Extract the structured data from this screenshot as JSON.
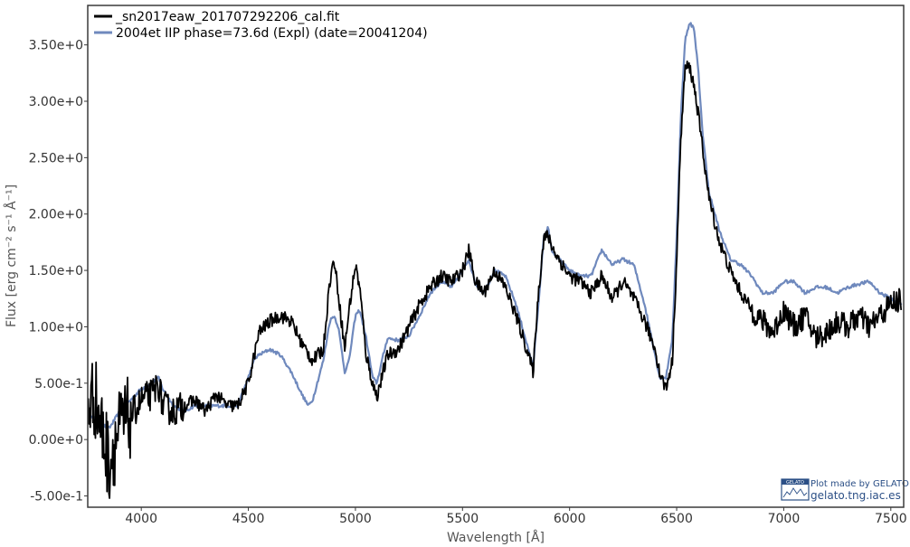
{
  "chart_data": {
    "type": "line",
    "title": "",
    "xlabel": "Wavelength [Å]",
    "ylabel": "Flux [erg cm⁻² s⁻¹ Å⁻¹]",
    "xlim": [
      3750,
      7560
    ],
    "ylim": [
      -0.6,
      3.85
    ],
    "x_ticks": [
      4000,
      4500,
      5000,
      5500,
      6000,
      6500,
      7000,
      7500
    ],
    "x_tick_labels": [
      "4000",
      "4500",
      "5000",
      "5500",
      "6000",
      "6500",
      "7000",
      "7500"
    ],
    "y_ticks": [
      -0.5,
      0.0,
      0.5,
      1.0,
      1.5,
      2.0,
      2.5,
      3.0,
      3.5
    ],
    "y_tick_labels": [
      "-5.00e-1",
      "0.00e+0",
      "5.00e-1",
      "1.00e+0",
      "1.50e+0",
      "2.00e+0",
      "2.50e+0",
      "3.00e+0",
      "3.50e+0"
    ],
    "grid": false,
    "legend_position": "top-left",
    "series": [
      {
        "name": "_sn2017eaw_201707292206_cal.fit",
        "color": "#000000",
        "noisy": true,
        "x": [
          3750,
          3780,
          3800,
          3820,
          3850,
          3880,
          3900,
          3950,
          4000,
          4050,
          4080,
          4100,
          4150,
          4200,
          4250,
          4300,
          4350,
          4400,
          4450,
          4500,
          4550,
          4600,
          4650,
          4700,
          4750,
          4800,
          4850,
          4880,
          4900,
          4920,
          4950,
          4970,
          5000,
          5020,
          5050,
          5080,
          5100,
          5130,
          5150,
          5200,
          5250,
          5300,
          5350,
          5400,
          5450,
          5500,
          5530,
          5560,
          5600,
          5650,
          5700,
          5750,
          5800,
          5830,
          5850,
          5880,
          5900,
          5920,
          5950,
          6000,
          6050,
          6100,
          6150,
          6200,
          6250,
          6300,
          6350,
          6400,
          6420,
          6450,
          6480,
          6500,
          6520,
          6540,
          6560,
          6580,
          6600,
          6620,
          6650,
          6700,
          6750,
          6800,
          6850,
          6900,
          6950,
          7000,
          7050,
          7100,
          7150,
          7200,
          7250,
          7300,
          7350,
          7400,
          7450,
          7500,
          7550
        ],
        "y": [
          0.3,
          0.4,
          0.25,
          0.05,
          -0.2,
          0.0,
          0.1,
          0.2,
          0.35,
          0.4,
          0.5,
          0.3,
          0.25,
          0.3,
          0.35,
          0.25,
          0.4,
          0.3,
          0.3,
          0.5,
          0.95,
          1.05,
          1.1,
          1.05,
          0.85,
          0.7,
          0.8,
          1.4,
          1.6,
          1.3,
          0.8,
          1.15,
          1.55,
          1.35,
          0.75,
          0.5,
          0.38,
          0.6,
          0.75,
          0.8,
          1.0,
          1.2,
          1.35,
          1.45,
          1.4,
          1.5,
          1.68,
          1.4,
          1.3,
          1.5,
          1.35,
          1.1,
          0.8,
          0.6,
          1.2,
          1.8,
          1.8,
          1.7,
          1.6,
          1.45,
          1.4,
          1.3,
          1.45,
          1.25,
          1.4,
          1.25,
          1.05,
          0.8,
          0.6,
          0.45,
          0.7,
          1.6,
          2.7,
          3.3,
          3.3,
          3.15,
          2.9,
          2.6,
          2.15,
          1.75,
          1.5,
          1.3,
          1.15,
          1.05,
          0.95,
          1.15,
          1.0,
          1.1,
          0.9,
          0.95,
          1.05,
          1.0,
          1.1,
          1.0,
          1.1,
          1.2,
          1.25
        ]
      },
      {
        "name": "2004et  IIP  phase=73.6d (Expl)  (date=20041204)",
        "color": "#6f89bd",
        "noisy": false,
        "x": [
          3750,
          3800,
          3850,
          3900,
          3950,
          4000,
          4050,
          4080,
          4100,
          4150,
          4200,
          4250,
          4300,
          4350,
          4400,
          4450,
          4500,
          4530,
          4550,
          4600,
          4650,
          4700,
          4750,
          4780,
          4800,
          4850,
          4880,
          4900,
          4920,
          4950,
          4970,
          5000,
          5020,
          5050,
          5080,
          5100,
          5130,
          5150,
          5200,
          5250,
          5300,
          5350,
          5400,
          5450,
          5500,
          5530,
          5560,
          5600,
          5650,
          5700,
          5750,
          5800,
          5830,
          5850,
          5880,
          5900,
          5920,
          5950,
          6000,
          6050,
          6100,
          6150,
          6200,
          6250,
          6300,
          6350,
          6400,
          6420,
          6450,
          6480,
          6500,
          6520,
          6540,
          6560,
          6580,
          6600,
          6620,
          6650,
          6700,
          6750,
          6800,
          6850,
          6900,
          6950,
          7000,
          7050,
          7100,
          7150,
          7200,
          7250,
          7300,
          7350,
          7400,
          7450,
          7500,
          7550
        ],
        "y": [
          0.25,
          0.15,
          0.1,
          0.25,
          0.35,
          0.45,
          0.5,
          0.55,
          0.45,
          0.3,
          0.25,
          0.3,
          0.3,
          0.3,
          0.3,
          0.3,
          0.55,
          0.72,
          0.75,
          0.8,
          0.75,
          0.6,
          0.4,
          0.3,
          0.35,
          0.7,
          1.05,
          1.1,
          1.0,
          0.6,
          0.7,
          1.1,
          1.15,
          0.9,
          0.55,
          0.5,
          0.75,
          0.9,
          0.88,
          0.92,
          1.1,
          1.3,
          1.4,
          1.35,
          1.5,
          1.6,
          1.38,
          1.3,
          1.5,
          1.45,
          1.2,
          0.85,
          0.65,
          1.1,
          1.8,
          1.88,
          1.65,
          1.6,
          1.5,
          1.45,
          1.45,
          1.68,
          1.55,
          1.6,
          1.55,
          1.2,
          0.75,
          0.55,
          0.55,
          0.9,
          1.8,
          2.9,
          3.55,
          3.7,
          3.65,
          3.3,
          2.75,
          2.2,
          1.85,
          1.6,
          1.55,
          1.45,
          1.3,
          1.3,
          1.4,
          1.4,
          1.3,
          1.35,
          1.35,
          1.3,
          1.35,
          1.38,
          1.4,
          1.3,
          1.25,
          1.2
        ]
      }
    ]
  },
  "credit": {
    "badge": "GELATO",
    "line1": "Plot made by GELATO",
    "line2": "gelato.tng.iac.es"
  }
}
